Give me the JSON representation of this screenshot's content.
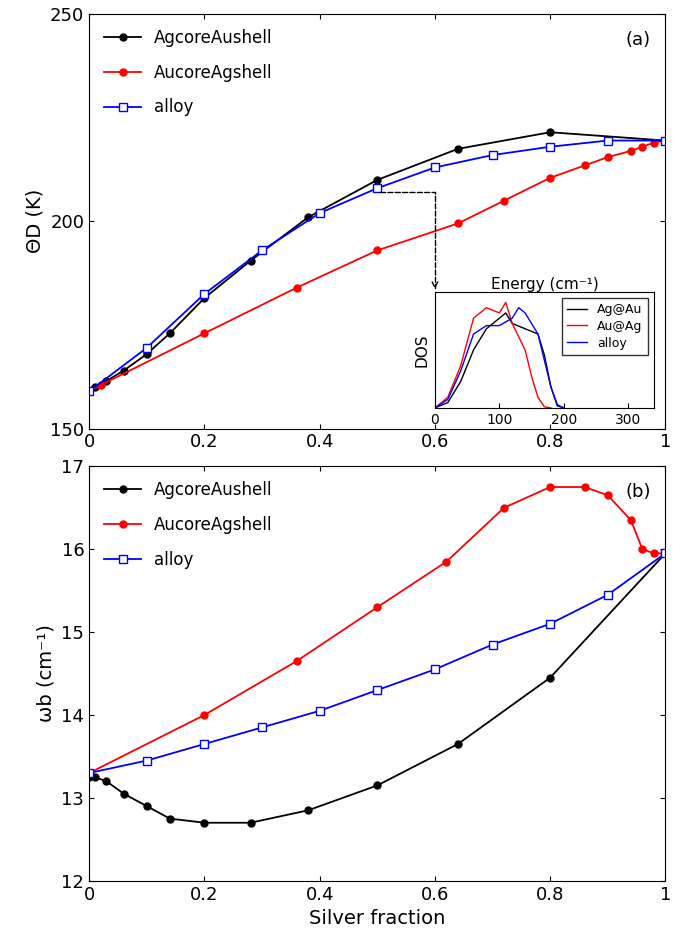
{
  "chart_data": [
    {
      "type": "line",
      "ylabel": "ΘD (K)",
      "annotation": "(a)",
      "xlim": [
        0,
        1
      ],
      "xticks": [
        0,
        0.2,
        0.4,
        0.6,
        0.8,
        1
      ],
      "ylim": [
        150,
        250
      ],
      "yticks": [
        150,
        200,
        250
      ],
      "legend": "upper left",
      "series": [
        {
          "name": "AgcoreAushell",
          "color": "#000000",
          "marker": "circle",
          "line_style": "solid",
          "x": [
            0,
            0.01,
            0.03,
            0.06,
            0.1,
            0.14,
            0.2,
            0.28,
            0.38,
            0.5,
            0.64,
            0.8,
            1.0
          ],
          "values": [
            159,
            160,
            161.5,
            164,
            168,
            173,
            181.5,
            190.5,
            201,
            210,
            217.5,
            221.5,
            219.5
          ]
        },
        {
          "name": "AucoreAgshell",
          "color": "#ff0000",
          "marker": "circle",
          "line_style": "solid",
          "x": [
            0,
            0.02,
            0.2,
            0.36,
            0.5,
            0.64,
            0.72,
            0.8,
            0.86,
            0.9,
            0.94,
            0.96,
            0.98,
            1.0
          ],
          "values": [
            159,
            160.5,
            173,
            184,
            193,
            199.5,
            205,
            210.5,
            213.5,
            215.5,
            217,
            218,
            219,
            219.5
          ]
        },
        {
          "name": "alloy",
          "color": "#0000ff",
          "marker": "open_square",
          "line_style": "solid",
          "x": [
            0,
            0.1,
            0.2,
            0.3,
            0.4,
            0.5,
            0.6,
            0.7,
            0.8,
            0.9,
            1.0
          ],
          "values": [
            159,
            169.5,
            182.5,
            193,
            202,
            208,
            213,
            216,
            218,
            219.5,
            219.5
          ]
        }
      ]
    },
    {
      "type": "line",
      "xlabel": "Energy (cm⁻¹)",
      "ylabel": "DOS",
      "xlim": [
        0,
        340
      ],
      "xticks": [
        0,
        100,
        200,
        300
      ],
      "ylim": [
        0,
        1.1
      ],
      "tick_labels": "x",
      "legend": "upper right",
      "series": [
        {
          "name": "Ag@Au",
          "color": "#000000",
          "marker": "none",
          "line_style": "solid",
          "x": [
            0,
            20,
            40,
            60,
            80,
            100,
            110,
            120,
            140,
            160,
            170,
            180,
            190,
            200
          ],
          "values": [
            0,
            0.05,
            0.25,
            0.55,
            0.75,
            0.85,
            0.9,
            0.8,
            0.75,
            0.7,
            0.5,
            0.2,
            0.02,
            0
          ]
        },
        {
          "name": "Au@Ag",
          "color": "#ff0000",
          "marker": "none",
          "line_style": "solid",
          "x": [
            0,
            20,
            40,
            60,
            80,
            100,
            110,
            120,
            140,
            150,
            160,
            170,
            180
          ],
          "values": [
            0,
            0.1,
            0.4,
            0.85,
            0.95,
            0.9,
            1.0,
            0.8,
            0.55,
            0.3,
            0.1,
            0.01,
            0
          ]
        },
        {
          "name": "alloy",
          "color": "#0000ff",
          "marker": "none",
          "line_style": "solid",
          "x": [
            0,
            20,
            40,
            60,
            80,
            100,
            120,
            130,
            140,
            160,
            170,
            180,
            190,
            200
          ],
          "values": [
            0,
            0.08,
            0.35,
            0.7,
            0.78,
            0.78,
            0.85,
            0.95,
            0.9,
            0.7,
            0.45,
            0.2,
            0.03,
            0
          ]
        }
      ]
    },
    {
      "type": "line",
      "xlabel": "Silver fraction",
      "ylabel": "ωb (cm⁻¹)",
      "annotation": "(b)",
      "xlim": [
        0,
        1
      ],
      "xticks": [
        0,
        0.2,
        0.4,
        0.6,
        0.8,
        1
      ],
      "ylim": [
        12,
        17
      ],
      "yticks": [
        12,
        13,
        14,
        15,
        16,
        17
      ],
      "legend": "upper left",
      "series": [
        {
          "name": "AgcoreAushell",
          "color": "#000000",
          "marker": "circle",
          "line_style": "solid",
          "x": [
            0,
            0.01,
            0.03,
            0.06,
            0.1,
            0.14,
            0.2,
            0.28,
            0.38,
            0.5,
            0.64,
            0.8,
            1.0
          ],
          "values": [
            13.25,
            13.25,
            13.2,
            13.05,
            12.9,
            12.75,
            12.7,
            12.7,
            12.85,
            13.15,
            13.65,
            14.45,
            15.95
          ]
        },
        {
          "name": "AucoreAgshell",
          "color": "#ff0000",
          "marker": "circle",
          "line_style": "solid",
          "x": [
            0,
            0.2,
            0.36,
            0.5,
            0.62,
            0.72,
            0.8,
            0.86,
            0.9,
            0.94,
            0.96,
            0.98,
            1.0
          ],
          "values": [
            13.3,
            14.0,
            14.65,
            15.3,
            15.85,
            16.5,
            16.75,
            16.75,
            16.65,
            16.35,
            16.0,
            15.95,
            15.95
          ]
        },
        {
          "name": "alloy",
          "color": "#0000ff",
          "marker": "open_square",
          "line_style": "solid",
          "x": [
            0,
            0.1,
            0.2,
            0.3,
            0.4,
            0.5,
            0.6,
            0.7,
            0.8,
            0.9,
            1.0
          ],
          "values": [
            13.3,
            13.45,
            13.65,
            13.85,
            14.05,
            14.3,
            14.55,
            14.85,
            15.1,
            15.45,
            15.95
          ]
        }
      ]
    }
  ]
}
